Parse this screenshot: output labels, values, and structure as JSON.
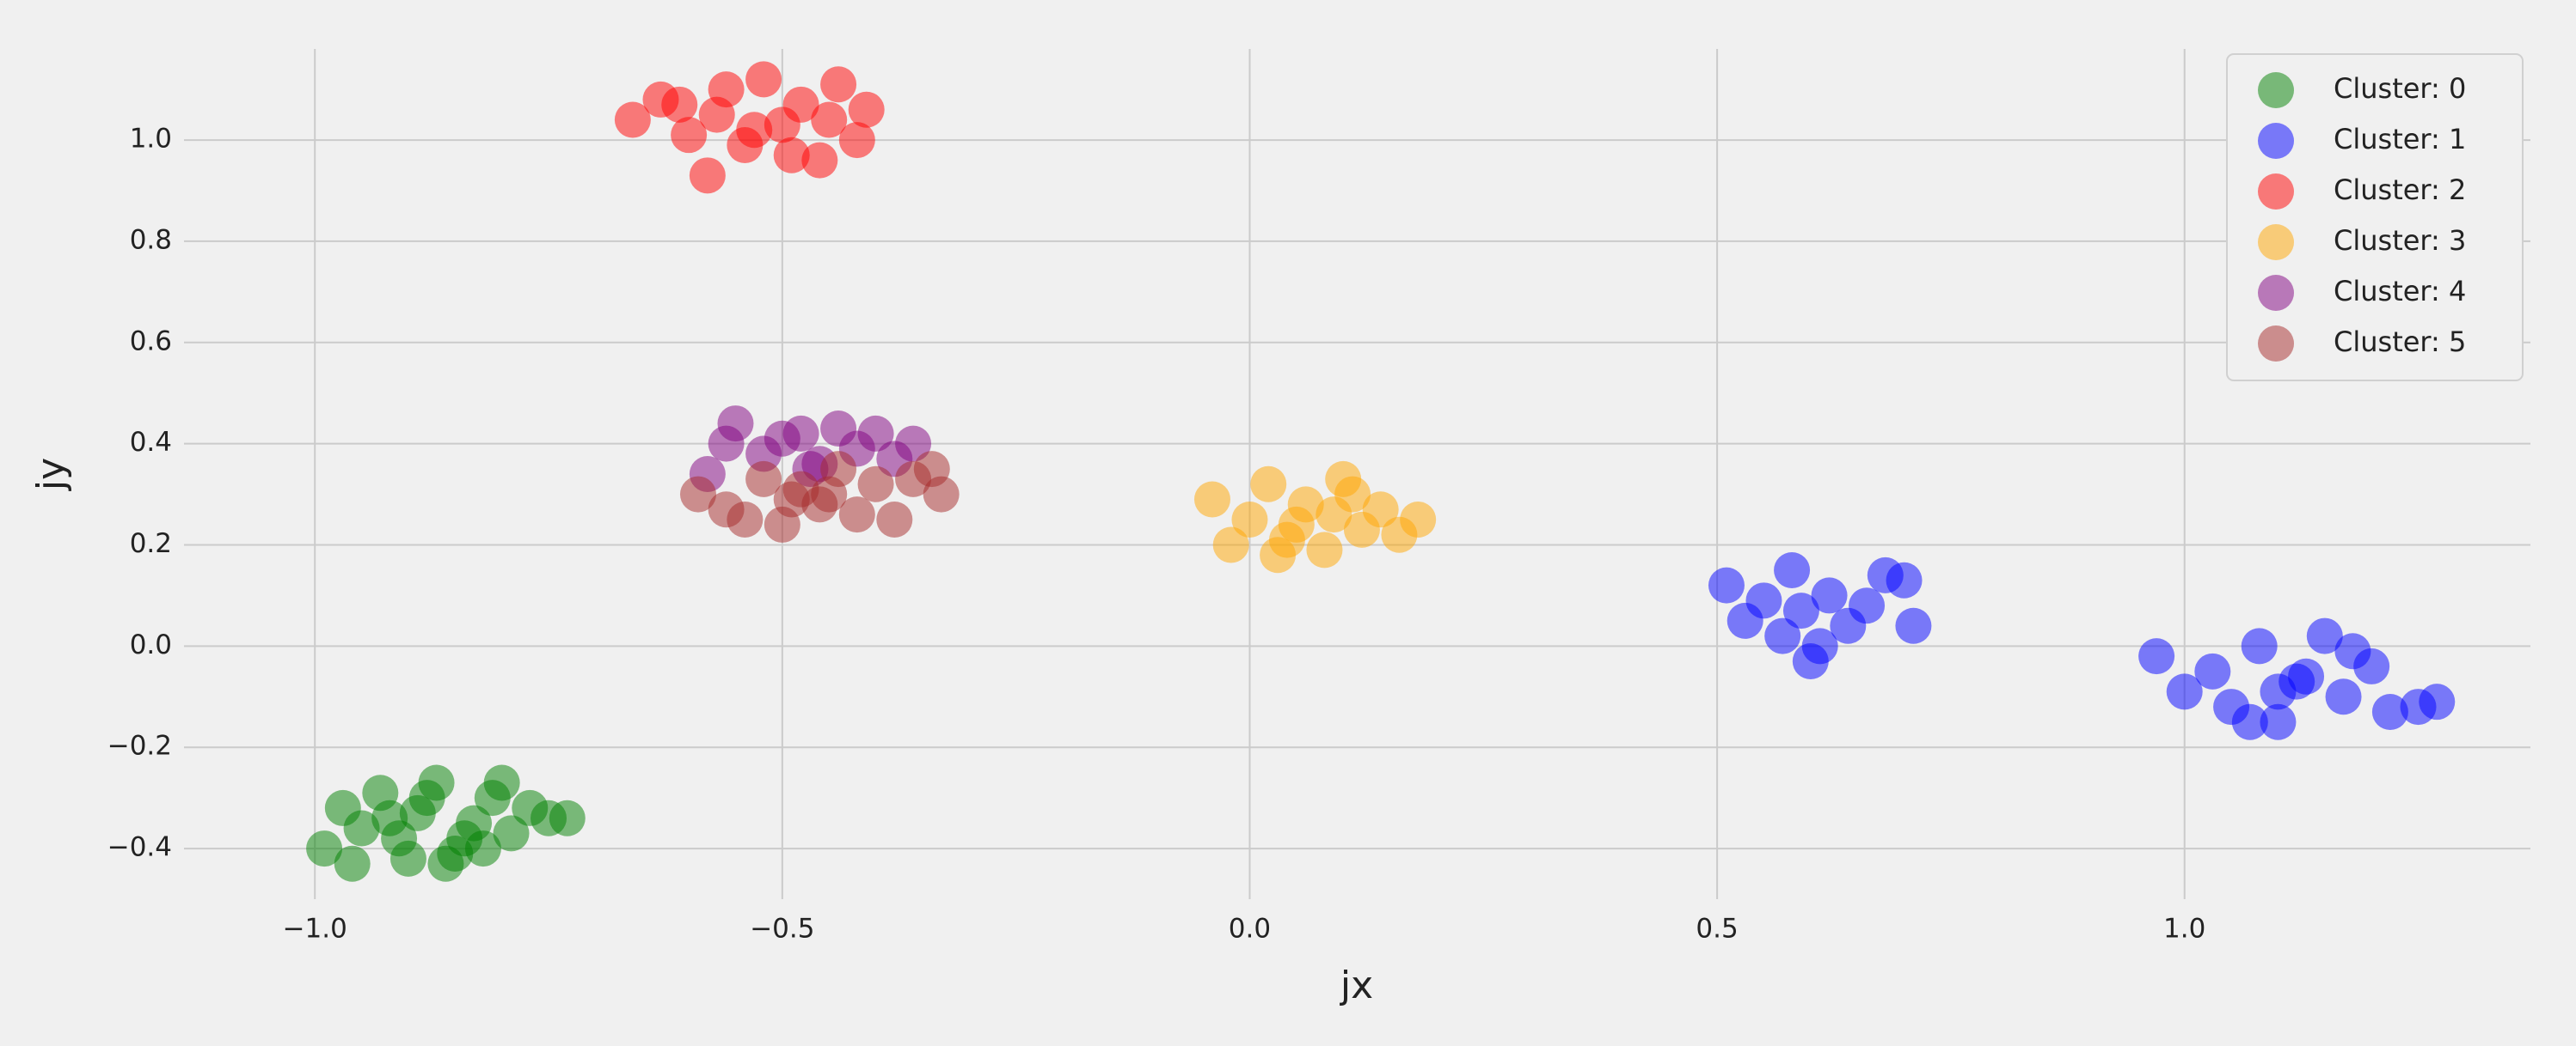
{
  "chart_data": {
    "type": "scatter",
    "x_label": "jx",
    "y_label": "jy",
    "xlim": [
      -1.14,
      1.37
    ],
    "ylim": [
      -0.5,
      1.18
    ],
    "xticks": [
      {
        "value": -1.0,
        "label": "−1.0"
      },
      {
        "value": -0.5,
        "label": "−0.5"
      },
      {
        "value": 0,
        "label": "0.0"
      },
      0.5,
      {
        "value": 1.0,
        "label": "1.0"
      }
    ],
    "yticks": [
      {
        "value": -0.4,
        "label": "−0.4"
      },
      {
        "value": -0.2,
        "label": "−0.2"
      },
      {
        "value": 0,
        "label": "0.0"
      },
      0.2,
      0.4,
      0.6,
      0.8,
      {
        "value": 1.0,
        "label": "1.0"
      }
    ],
    "grid": true,
    "legend": "upper right",
    "series": [
      {
        "name": "Cluster: 0",
        "color": "green",
        "x": [
          -0.99,
          -0.97,
          -0.95,
          -0.93,
          -0.91,
          -0.89,
          -0.87,
          -0.85,
          -0.83,
          -0.81,
          -0.79,
          -0.77,
          -0.75,
          -0.73,
          -0.96,
          -0.9,
          -0.86,
          -0.8,
          -0.92,
          -0.84,
          -0.88,
          -0.82
        ],
        "values": [
          -0.4,
          -0.32,
          -0.36,
          -0.29,
          -0.38,
          -0.33,
          -0.27,
          -0.41,
          -0.35,
          -0.3,
          -0.37,
          -0.32,
          -0.34,
          -0.34,
          -0.43,
          -0.42,
          -0.43,
          -0.27,
          -0.34,
          -0.38,
          -0.3,
          -0.4
        ]
      },
      {
        "name": "Cluster: 1",
        "color": "blue",
        "x": [
          0.51,
          0.53,
          0.55,
          0.57,
          0.58,
          0.6,
          0.62,
          0.64,
          0.66,
          0.68,
          0.7,
          0.71,
          0.59,
          0.61,
          0.97,
          1.0,
          1.03,
          1.05,
          1.08,
          1.1,
          1.12,
          1.15,
          1.17,
          1.2,
          1.22,
          1.25,
          1.27,
          1.07,
          1.13,
          1.18,
          1.1
        ],
        "values": [
          0.12,
          0.05,
          0.09,
          0.02,
          0.15,
          -0.03,
          0.1,
          0.04,
          0.08,
          0.14,
          0.13,
          0.04,
          0.07,
          0.0,
          -0.02,
          -0.09,
          -0.05,
          -0.12,
          0.0,
          -0.15,
          -0.07,
          0.02,
          -0.1,
          -0.04,
          -0.13,
          -0.12,
          -0.11,
          -0.15,
          -0.06,
          -0.01,
          -0.09
        ]
      },
      {
        "name": "Cluster: 2",
        "color": "red",
        "x": [
          -0.66,
          -0.63,
          -0.6,
          -0.58,
          -0.56,
          -0.54,
          -0.52,
          -0.5,
          -0.48,
          -0.46,
          -0.44,
          -0.42,
          -0.41,
          -0.57,
          -0.53,
          -0.49,
          -0.45,
          -0.61
        ],
        "values": [
          1.04,
          1.08,
          1.01,
          0.93,
          1.1,
          0.99,
          1.12,
          1.03,
          1.07,
          0.96,
          1.11,
          1.0,
          1.06,
          1.05,
          1.02,
          0.97,
          1.04,
          1.07
        ]
      },
      {
        "name": "Cluster: 3",
        "color": "orange",
        "x": [
          -0.04,
          -0.02,
          0.0,
          0.02,
          0.04,
          0.06,
          0.08,
          0.1,
          0.12,
          0.14,
          0.16,
          0.18,
          0.05,
          0.09,
          0.03,
          0.11
        ],
        "values": [
          0.29,
          0.2,
          0.25,
          0.32,
          0.21,
          0.28,
          0.19,
          0.33,
          0.23,
          0.27,
          0.22,
          0.25,
          0.24,
          0.26,
          0.18,
          0.3
        ]
      },
      {
        "name": "Cluster: 4",
        "color": "purple",
        "x": [
          -0.58,
          -0.56,
          -0.55,
          -0.52,
          -0.5,
          -0.48,
          -0.46,
          -0.44,
          -0.42,
          -0.4,
          -0.38,
          -0.36,
          -0.47
        ],
        "values": [
          0.34,
          0.4,
          0.44,
          0.38,
          0.41,
          0.42,
          0.36,
          0.43,
          0.39,
          0.42,
          0.37,
          0.4,
          0.35
        ]
      },
      {
        "name": "Cluster: 5",
        "color": "brown",
        "x": [
          -0.59,
          -0.56,
          -0.54,
          -0.52,
          -0.5,
          -0.48,
          -0.46,
          -0.44,
          -0.42,
          -0.4,
          -0.38,
          -0.36,
          -0.34,
          -0.33,
          -0.45,
          -0.49
        ],
        "values": [
          0.3,
          0.27,
          0.25,
          0.33,
          0.24,
          0.31,
          0.28,
          0.35,
          0.26,
          0.32,
          0.25,
          0.33,
          0.35,
          0.3,
          0.3,
          0.29
        ]
      }
    ]
  }
}
